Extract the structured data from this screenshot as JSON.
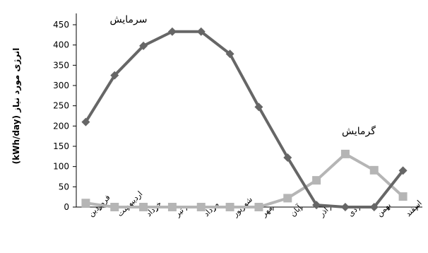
{
  "chart_data": {
    "type": "line",
    "ylabel": "انرژی مورد نیاز (kWh/day)",
    "ylim": [
      0,
      450
    ],
    "yticks": [
      0,
      50,
      100,
      150,
      200,
      250,
      300,
      350,
      400,
      450
    ],
    "categories": [
      "فروردین",
      "اردیبهشت",
      "خرداد",
      "تیر",
      "مرداد",
      "شهریور",
      "مهر",
      "آبان",
      "آذر",
      "دی",
      "بهمن",
      "اسفند"
    ],
    "series": [
      {
        "name": "سرمایش",
        "color": "#666666",
        "marker": "diamond",
        "values": [
          210,
          325,
          398,
          433,
          433,
          378,
          247,
          122,
          5,
          0,
          0,
          90
        ]
      },
      {
        "name": "گرمایش",
        "color": "#b5b5b5",
        "marker": "square",
        "values": [
          10,
          0,
          0,
          0,
          0,
          0,
          0,
          22,
          66,
          131,
          91,
          26
        ]
      }
    ],
    "grid": false,
    "legend": "inline labels"
  }
}
